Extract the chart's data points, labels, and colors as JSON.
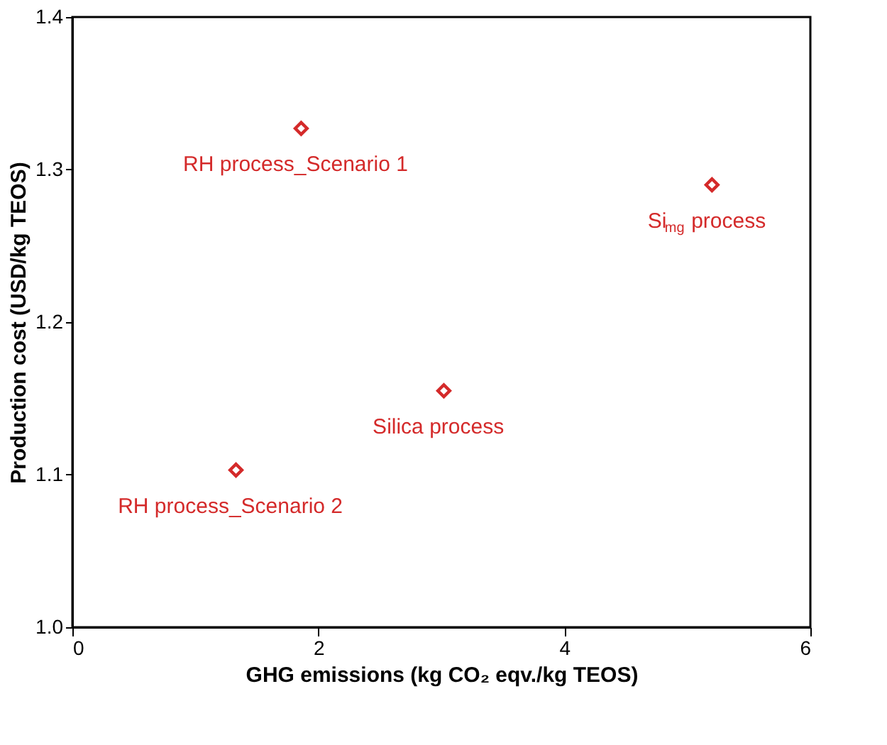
{
  "chart_data": {
    "type": "scatter",
    "xlabel": "GHG emissions (kg CO₂ eqv./kg TEOS)",
    "ylabel": "Production cost (USD/kg TEOS)",
    "xlim": [
      0,
      6
    ],
    "ylim": [
      1.0,
      1.4
    ],
    "xticks": [
      0,
      2,
      4,
      6
    ],
    "yticks": [
      {
        "value": 1.0,
        "label": "1.0"
      },
      {
        "value": 1.1,
        "label": "1.1"
      },
      {
        "value": 1.2,
        "label": "1.2"
      },
      {
        "value": 1.3,
        "label": "1.3"
      },
      {
        "value": 1.4,
        "label": "1.4"
      }
    ],
    "grid": false,
    "marker": "diamond",
    "series": [
      {
        "color": "#d42a2a",
        "x": [
          1.86,
          5.2,
          3.02,
          1.33
        ],
        "values": [
          1.327,
          1.29,
          1.155,
          1.103
        ]
      }
    ],
    "annotations": [
      {
        "text": "RH process_Scenario 1",
        "x": 1.86,
        "y": 1.327
      },
      {
        "text": "Si$_{mg}$ process",
        "x": 5.2,
        "y": 1.29
      },
      {
        "text": "Silica process",
        "x": 3.02,
        "y": 1.155
      },
      {
        "text": "RH process_Scenario 2",
        "x": 1.33,
        "y": 1.103
      }
    ]
  }
}
